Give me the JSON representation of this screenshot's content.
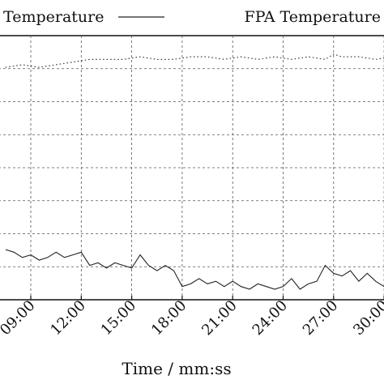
{
  "chart_data": {
    "type": "line",
    "xlabel": "Time / mm:ss",
    "x_ticks": [
      "09:00",
      "12:00",
      "15:00",
      "18:00",
      "21:00",
      "24:00",
      "27:00",
      "30:00"
    ],
    "legend": {
      "placement": "top",
      "entries": [
        "Temperature",
        "FPA Temperature"
      ]
    },
    "grid": true,
    "series": [
      {
        "name": "Temperature",
        "style": "dotted",
        "color": "#222222",
        "points": [
          [
            "07:30",
            0.88
          ],
          [
            "08:30",
            0.89
          ],
          [
            "09:30",
            0.88
          ],
          [
            "10:30",
            0.89
          ],
          [
            "11:30",
            0.9
          ],
          [
            "12:30",
            0.91
          ],
          [
            "13:30",
            0.91
          ],
          [
            "14:30",
            0.91
          ],
          [
            "15:30",
            0.92
          ],
          [
            "16:30",
            0.91
          ],
          [
            "17:30",
            0.91
          ],
          [
            "18:30",
            0.92
          ],
          [
            "19:30",
            0.92
          ],
          [
            "20:30",
            0.91
          ],
          [
            "21:30",
            0.92
          ],
          [
            "22:30",
            0.91
          ],
          [
            "23:30",
            0.92
          ],
          [
            "24:30",
            0.91
          ],
          [
            "25:30",
            0.92
          ],
          [
            "26:30",
            0.91
          ],
          [
            "27:00",
            0.93
          ],
          [
            "27:30",
            0.92
          ],
          [
            "28:30",
            0.92
          ],
          [
            "29:30",
            0.91
          ],
          [
            "30:30",
            0.92
          ],
          [
            "31:00",
            0.92
          ]
        ]
      },
      {
        "name": "FPA Temperature",
        "style": "solid",
        "color": "#222222",
        "points": [
          [
            "07:30",
            0.19
          ],
          [
            "08:00",
            0.18
          ],
          [
            "08:30",
            0.16
          ],
          [
            "09:00",
            0.17
          ],
          [
            "09:30",
            0.15
          ],
          [
            "10:00",
            0.16
          ],
          [
            "10:30",
            0.18
          ],
          [
            "11:00",
            0.16
          ],
          [
            "11:30",
            0.17
          ],
          [
            "12:00",
            0.18
          ],
          [
            "12:30",
            0.13
          ],
          [
            "13:00",
            0.14
          ],
          [
            "13:30",
            0.12
          ],
          [
            "14:00",
            0.14
          ],
          [
            "14:30",
            0.13
          ],
          [
            "15:00",
            0.12
          ],
          [
            "15:30",
            0.17
          ],
          [
            "16:00",
            0.13
          ],
          [
            "16:30",
            0.11
          ],
          [
            "17:00",
            0.13
          ],
          [
            "17:30",
            0.11
          ],
          [
            "18:00",
            0.05
          ],
          [
            "18:30",
            0.06
          ],
          [
            "19:00",
            0.08
          ],
          [
            "19:30",
            0.06
          ],
          [
            "20:00",
            0.07
          ],
          [
            "20:30",
            0.05
          ],
          [
            "21:00",
            0.07
          ],
          [
            "21:30",
            0.05
          ],
          [
            "22:00",
            0.04
          ],
          [
            "22:30",
            0.06
          ],
          [
            "23:00",
            0.05
          ],
          [
            "23:30",
            0.04
          ],
          [
            "24:00",
            0.05
          ],
          [
            "24:30",
            0.08
          ],
          [
            "25:00",
            0.04
          ],
          [
            "25:30",
            0.06
          ],
          [
            "26:00",
            0.07
          ],
          [
            "26:30",
            0.13
          ],
          [
            "27:00",
            0.1
          ],
          [
            "27:30",
            0.09
          ],
          [
            "28:00",
            0.11
          ],
          [
            "28:30",
            0.07
          ],
          [
            "29:00",
            0.1
          ],
          [
            "29:30",
            0.07
          ],
          [
            "30:00",
            0.05
          ],
          [
            "30:30",
            0.13
          ],
          [
            "31:00",
            0.12
          ]
        ]
      }
    ]
  }
}
